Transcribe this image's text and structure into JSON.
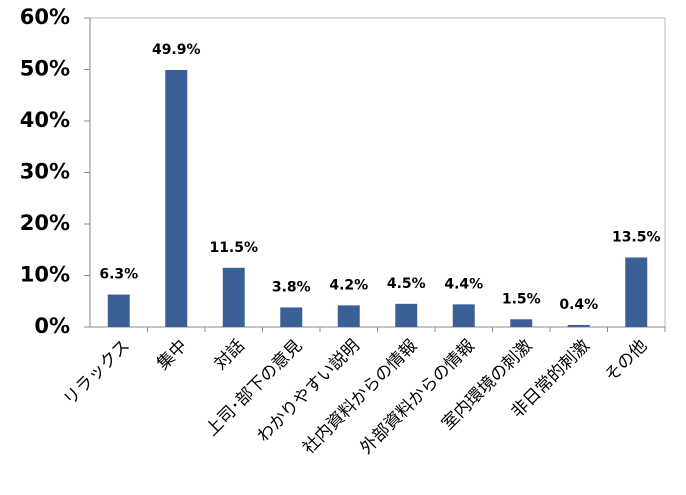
{
  "chart_data": {
    "type": "bar",
    "categories": [
      "リラックス",
      "集中",
      "対話",
      "上司･部下の意見",
      "わかりやすい説明",
      "社内資料からの情報",
      "外部資料からの情報",
      "室内環境の刺激",
      "非日常的刺激",
      "その他"
    ],
    "values": [
      6.3,
      49.9,
      11.5,
      3.8,
      4.2,
      4.5,
      4.4,
      1.5,
      0.4,
      13.5
    ],
    "value_labels": [
      "6.3%",
      "49.9%",
      "11.5%",
      "3.8%",
      "4.2%",
      "4.5%",
      "4.4%",
      "1.5%",
      "0.4%",
      "13.5%"
    ],
    "color": "#3b6096",
    "ylim": [
      0,
      60
    ],
    "yticks": [
      {
        "value": 0,
        "label": "0%"
      },
      {
        "value": 10,
        "label": "10%"
      },
      {
        "value": 20,
        "label": "20%"
      },
      {
        "value": 30,
        "label": "30%"
      },
      {
        "value": 40,
        "label": "40%"
      },
      {
        "value": 50,
        "label": "50%"
      },
      {
        "value": 60,
        "label": "60%"
      }
    ],
    "grid": false
  }
}
